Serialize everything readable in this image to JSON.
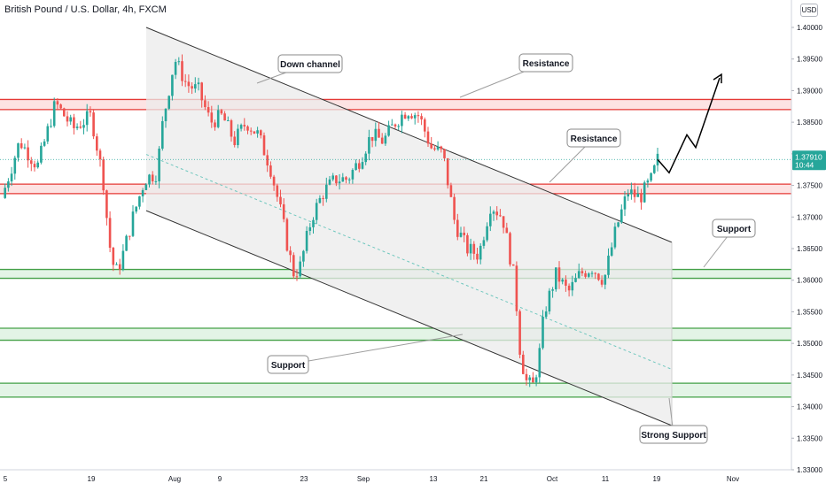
{
  "header": {
    "symbol_title": "British Pound / U.S. Dollar, 4h, FXCM",
    "currency_badge": "USD"
  },
  "price_tag": {
    "price": "1.37910",
    "countdown": "10:44"
  },
  "annotations": [
    {
      "id": "down-channel",
      "text": "Down channel"
    },
    {
      "id": "resistance-1",
      "text": "Resistance"
    },
    {
      "id": "resistance-2",
      "text": "Resistance"
    },
    {
      "id": "support-1",
      "text": "Support"
    },
    {
      "id": "support-2",
      "text": "Support"
    },
    {
      "id": "strong-support",
      "text": "Strong Support"
    }
  ],
  "colors": {
    "up": "#26a69a",
    "down": "#ef5350",
    "resistance_line": "#e53935",
    "resistance_fill": "#fde3e3",
    "support_line": "#43a047",
    "support_fill": "#e3f4e6",
    "channel_fill": "#ebebeb",
    "axis_text": "#131722",
    "price_tag": "#26a69a"
  },
  "chart_data": {
    "type": "candlestick",
    "title": "British Pound / U.S. Dollar, 4h, FXCM",
    "ylabel": "USD",
    "ylim": [
      1.33,
      1.405
    ],
    "y_ticks": [
      "1.40000",
      "1.39500",
      "1.39000",
      "1.38500",
      "1.38000",
      "1.37500",
      "1.37000",
      "1.36500",
      "1.36000",
      "1.35500",
      "1.35000",
      "1.34500",
      "1.34000",
      "1.33500",
      "1.33000"
    ],
    "x_ticks": [
      "5",
      "19",
      "Aug",
      "9",
      "23",
      "Sep",
      "13",
      "21",
      "Oct",
      "11",
      "19",
      "Nov"
    ],
    "last_price": 1.3791,
    "grid": false,
    "resistance_zones": [
      [
        1.387,
        1.3886
      ],
      [
        1.3737,
        1.3752
      ]
    ],
    "support_zones": [
      [
        1.3603,
        1.3617
      ],
      [
        1.3505,
        1.3524
      ],
      [
        1.3415,
        1.3437
      ]
    ],
    "price_path": [
      [
        0,
        1.373
      ],
      [
        3,
        1.382
      ],
      [
        6,
        1.378
      ],
      [
        9,
        1.388
      ],
      [
        12,
        1.384
      ],
      [
        15,
        1.386
      ],
      [
        17,
        1.376
      ],
      [
        18,
        1.366
      ],
      [
        19,
        1.361
      ],
      [
        20,
        1.363
      ],
      [
        22,
        1.37
      ],
      [
        24,
        1.376
      ],
      [
        26,
        1.377
      ],
      [
        27,
        1.385
      ],
      [
        29,
        1.395
      ],
      [
        31,
        1.391
      ],
      [
        33,
        1.39
      ],
      [
        35,
        1.385
      ],
      [
        37,
        1.386
      ],
      [
        39,
        1.382
      ],
      [
        41,
        1.385
      ],
      [
        43,
        1.383
      ],
      [
        45,
        1.378
      ],
      [
        47,
        1.37
      ],
      [
        48,
        1.365
      ],
      [
        49,
        1.361
      ],
      [
        50,
        1.362
      ],
      [
        52,
        1.37
      ],
      [
        54,
        1.374
      ],
      [
        56,
        1.376
      ],
      [
        58,
        1.376
      ],
      [
        60,
        1.379
      ],
      [
        62,
        1.383
      ],
      [
        64,
        1.382
      ],
      [
        66,
        1.385
      ],
      [
        68,
        1.387
      ],
      [
        70,
        1.386
      ],
      [
        72,
        1.381
      ],
      [
        74,
        1.38
      ],
      [
        76,
        1.369
      ],
      [
        78,
        1.365
      ],
      [
        80,
        1.364
      ],
      [
        82,
        1.372
      ],
      [
        84,
        1.37
      ],
      [
        86,
        1.36
      ],
      [
        87,
        1.348
      ],
      [
        88,
        1.344
      ],
      [
        89,
        1.343
      ],
      [
        90,
        1.347
      ],
      [
        91,
        1.355
      ],
      [
        93,
        1.361
      ],
      [
        95,
        1.358
      ],
      [
        97,
        1.361
      ],
      [
        99,
        1.362
      ],
      [
        101,
        1.36
      ],
      [
        103,
        1.368
      ],
      [
        105,
        1.374
      ],
      [
        107,
        1.373
      ],
      [
        109,
        1.376
      ],
      [
        110,
        1.3791
      ]
    ],
    "channel": {
      "upper": [
        [
          1.4,
          0
        ],
        [
          1.366,
          1
        ]
      ],
      "lower": [
        [
          1.371,
          0
        ],
        [
          1.337,
          1
        ]
      ]
    },
    "projection": [
      1.377,
      1.383,
      1.381,
      1.392
    ]
  }
}
